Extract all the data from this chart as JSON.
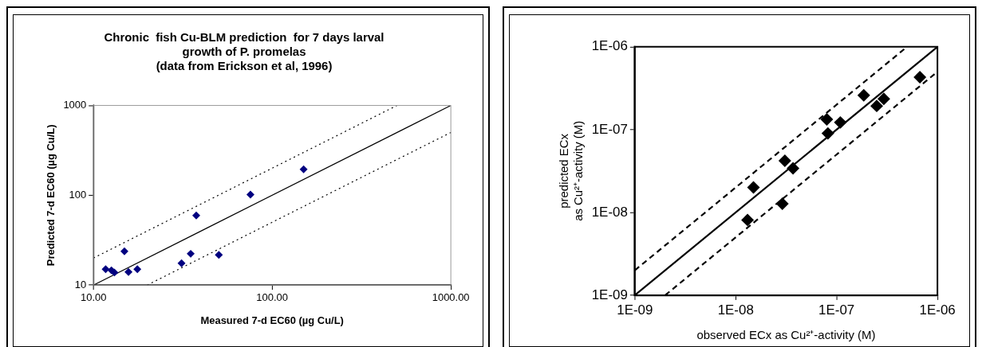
{
  "chart_data": [
    {
      "type": "scatter",
      "title": "Chronic  fish Cu-BLM prediction  for 7 days larval\ngrowth of P. promelas\n(data from Erickson et al, 1996)",
      "xlabel": "Measured 7-d EC60 (µg Cu/L)",
      "ylabel": "Predicted 7-d EC60 (µg Cu/L)",
      "log": "xy",
      "xlim": [
        10,
        1000
      ],
      "ylim": [
        10,
        1000
      ],
      "xticks": [
        {
          "value": 10,
          "label": "10.00"
        },
        {
          "value": 100,
          "label": "100.00"
        },
        {
          "value": 1000,
          "label": "1000.00"
        }
      ],
      "yticks": [
        10,
        100,
        1000
      ],
      "grid": false,
      "legend": false,
      "series": [
        {
          "type": "scatter",
          "color": "#000080",
          "marker": "diamond",
          "x": [
            11.7,
            12.6,
            13.1,
            14.9,
            15.7,
            17.6,
            31.1,
            35.0,
            37.6,
            50.3,
            75.6,
            150
          ],
          "values": [
            15.0,
            14.6,
            13.8,
            23.8,
            14.0,
            15.0,
            17.5,
            22.3,
            59.4,
            21.7,
            101.6,
            194
          ]
        },
        {
          "type": "line",
          "color": "#000000",
          "line_style": "solid",
          "x": [
            10,
            1000
          ],
          "values": [
            10,
            1000
          ]
        },
        {
          "type": "line",
          "color": "#000000",
          "line_style": "dotted",
          "x": [
            10,
            500
          ],
          "values": [
            20,
            1000
          ]
        },
        {
          "type": "line",
          "color": "#000000",
          "line_style": "dotted",
          "x": [
            20,
            1000
          ],
          "values": [
            10,
            500
          ]
        }
      ]
    },
    {
      "type": "scatter",
      "xlabel": "observed ECx as Cu²⁺-activity (M)",
      "ylabel": "predicted ECx\nas Cu²⁺-activity (M)",
      "log": "xy",
      "xlim": [
        1e-09,
        1e-06
      ],
      "ylim": [
        1e-09,
        1e-06
      ],
      "xticks": [
        {
          "value": 1e-09,
          "label": "1E-09"
        },
        {
          "value": 1e-08,
          "label": "1E-08"
        },
        {
          "value": 1e-07,
          "label": "1E-07"
        },
        {
          "value": 1e-06,
          "label": "1E-06"
        }
      ],
      "yticks": [
        {
          "value": 1e-09,
          "label": "1E-09"
        },
        {
          "value": 1e-08,
          "label": "1E-08"
        },
        {
          "value": 1e-07,
          "label": "1E-07"
        },
        {
          "value": 1e-06,
          "label": "1E-06"
        }
      ],
      "grid": false,
      "legend": false,
      "series": [
        {
          "type": "scatter",
          "color": "#000000",
          "marker": "diamond",
          "x": [
            1.31e-08,
            1.5e-08,
            2.9e-08,
            3.07e-08,
            3.7e-08,
            8e-08,
            8.2e-08,
            1.09e-07,
            1.86e-07,
            2.5e-07,
            2.94e-07,
            6.7e-07
          ],
          "values": [
            8.1e-09,
            2e-08,
            1.27e-08,
            4.2e-08,
            3.4e-08,
            1.33e-07,
            9e-08,
            1.22e-07,
            2.6e-07,
            1.93e-07,
            2.35e-07,
            4.3e-07
          ]
        },
        {
          "type": "line",
          "color": "#000000",
          "line_style": "solid",
          "x": [
            1e-09,
            1e-06
          ],
          "values": [
            1e-09,
            1e-06
          ]
        },
        {
          "type": "line",
          "color": "#000000",
          "line_style": "dashed",
          "x": [
            1e-09,
            5e-07
          ],
          "values": [
            2e-09,
            1e-06
          ]
        },
        {
          "type": "line",
          "color": "#000000",
          "line_style": "dashed",
          "x": [
            2e-09,
            1e-06
          ],
          "values": [
            1e-09,
            5e-07
          ]
        }
      ]
    }
  ]
}
